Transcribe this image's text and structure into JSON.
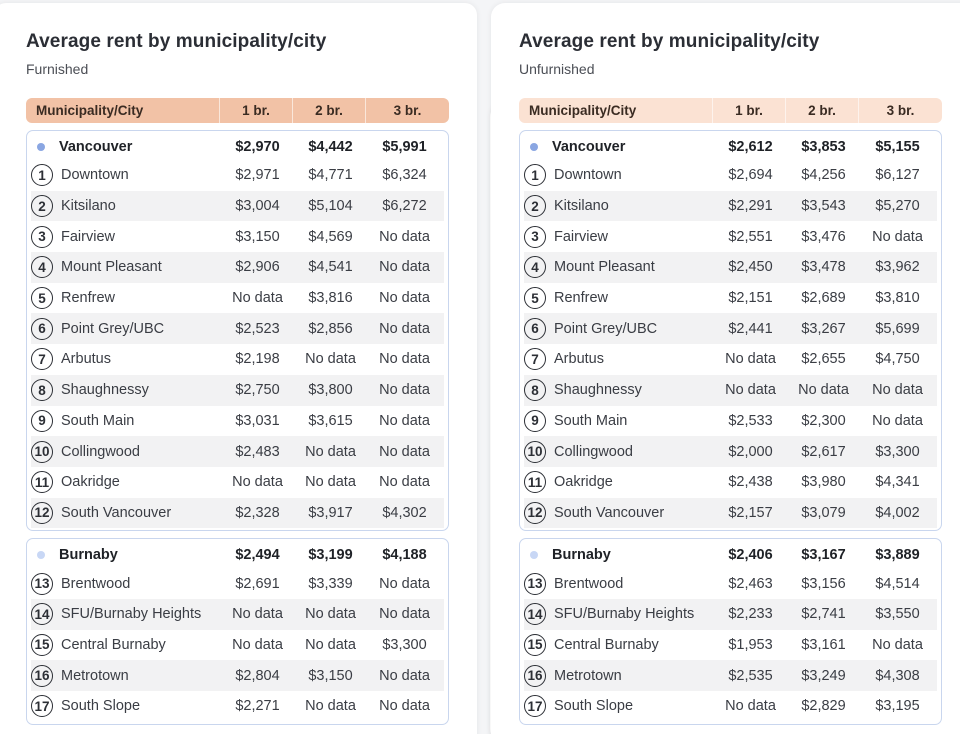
{
  "colors": {
    "header_furnished": "#f2c2a6",
    "header_unfurnished": "#fbe2d3",
    "dot_vancouver": "#8aa6e2",
    "dot_burnaby": "#c8d7f5"
  },
  "columns": [
    "Municipality/City",
    "1 br.",
    "2 br.",
    "3 br."
  ],
  "panels": [
    {
      "title": "Average rent by municipality/city",
      "subtitle": "Furnished",
      "groups": [
        {
          "name": "Vancouver",
          "values": [
            "$2,970",
            "$4,442",
            "$5,991"
          ],
          "rows": [
            {
              "n": "1",
              "name": "Downtown",
              "values": [
                "$2,971",
                "$4,771",
                "$6,324"
              ]
            },
            {
              "n": "2",
              "name": "Kitsilano",
              "values": [
                "$3,004",
                "$5,104",
                "$6,272"
              ]
            },
            {
              "n": "3",
              "name": "Fairview",
              "values": [
                "$3,150",
                "$4,569",
                "No data"
              ]
            },
            {
              "n": "4",
              "name": "Mount Pleasant",
              "values": [
                "$2,906",
                "$4,541",
                "No data"
              ]
            },
            {
              "n": "5",
              "name": "Renfrew",
              "values": [
                "No data",
                "$3,816",
                "No data"
              ]
            },
            {
              "n": "6",
              "name": "Point Grey/UBC",
              "values": [
                "$2,523",
                "$2,856",
                "No data"
              ]
            },
            {
              "n": "7",
              "name": "Arbutus",
              "values": [
                "$2,198",
                "No data",
                "No data"
              ]
            },
            {
              "n": "8",
              "name": "Shaughnessy",
              "values": [
                "$2,750",
                "$3,800",
                "No data"
              ]
            },
            {
              "n": "9",
              "name": "South Main",
              "values": [
                "$3,031",
                "$3,615",
                "No data"
              ]
            },
            {
              "n": "10",
              "name": "Collingwood",
              "values": [
                "$2,483",
                "No data",
                "No data"
              ]
            },
            {
              "n": "11",
              "name": "Oakridge",
              "values": [
                "No data",
                "No data",
                "No data"
              ]
            },
            {
              "n": "12",
              "name": "South Vancouver",
              "values": [
                "$2,328",
                "$3,917",
                "$4,302"
              ]
            }
          ]
        },
        {
          "name": "Burnaby",
          "values": [
            "$2,494",
            "$3,199",
            "$4,188"
          ],
          "rows": [
            {
              "n": "13",
              "name": "Brentwood",
              "values": [
                "$2,691",
                "$3,339",
                "No data"
              ]
            },
            {
              "n": "14",
              "name": "SFU/Burnaby Heights",
              "values": [
                "No data",
                "No data",
                "No data"
              ]
            },
            {
              "n": "15",
              "name": "Central Burnaby",
              "values": [
                "No data",
                "No data",
                "$3,300"
              ]
            },
            {
              "n": "16",
              "name": "Metrotown",
              "values": [
                "$2,804",
                "$3,150",
                "No data"
              ]
            },
            {
              "n": "17",
              "name": "South Slope",
              "values": [
                "$2,271",
                "No data",
                "No data"
              ]
            }
          ]
        }
      ]
    },
    {
      "title": "Average rent by municipality/city",
      "subtitle": "Unfurnished",
      "groups": [
        {
          "name": "Vancouver",
          "values": [
            "$2,612",
            "$3,853",
            "$5,155"
          ],
          "rows": [
            {
              "n": "1",
              "name": "Downtown",
              "values": [
                "$2,694",
                "$4,256",
                "$6,127"
              ]
            },
            {
              "n": "2",
              "name": "Kitsilano",
              "values": [
                "$2,291",
                "$3,543",
                "$5,270"
              ]
            },
            {
              "n": "3",
              "name": "Fairview",
              "values": [
                "$2,551",
                "$3,476",
                "No data"
              ]
            },
            {
              "n": "4",
              "name": "Mount Pleasant",
              "values": [
                "$2,450",
                "$3,478",
                "$3,962"
              ]
            },
            {
              "n": "5",
              "name": "Renfrew",
              "values": [
                "$2,151",
                "$2,689",
                "$3,810"
              ]
            },
            {
              "n": "6",
              "name": "Point Grey/UBC",
              "values": [
                "$2,441",
                "$3,267",
                "$5,699"
              ]
            },
            {
              "n": "7",
              "name": "Arbutus",
              "values": [
                "No data",
                "$2,655",
                "$4,750"
              ]
            },
            {
              "n": "8",
              "name": "Shaughnessy",
              "values": [
                "No data",
                "No data",
                "No data"
              ]
            },
            {
              "n": "9",
              "name": "South Main",
              "values": [
                "$2,533",
                "$2,300",
                "No data"
              ]
            },
            {
              "n": "10",
              "name": "Collingwood",
              "values": [
                "$2,000",
                "$2,617",
                "$3,300"
              ]
            },
            {
              "n": "11",
              "name": "Oakridge",
              "values": [
                "$2,438",
                "$3,980",
                "$4,341"
              ]
            },
            {
              "n": "12",
              "name": "South Vancouver",
              "values": [
                "$2,157",
                "$3,079",
                "$4,002"
              ]
            }
          ]
        },
        {
          "name": "Burnaby",
          "values": [
            "$2,406",
            "$3,167",
            "$3,889"
          ],
          "rows": [
            {
              "n": "13",
              "name": "Brentwood",
              "values": [
                "$2,463",
                "$3,156",
                "$4,514"
              ]
            },
            {
              "n": "14",
              "name": "SFU/Burnaby Heights",
              "values": [
                "$2,233",
                "$2,741",
                "$3,550"
              ]
            },
            {
              "n": "15",
              "name": "Central Burnaby",
              "values": [
                "$1,953",
                "$3,161",
                "No data"
              ]
            },
            {
              "n": "16",
              "name": "Metrotown",
              "values": [
                "$2,535",
                "$3,249",
                "$4,308"
              ]
            },
            {
              "n": "17",
              "name": "South Slope",
              "values": [
                "No data",
                "$2,829",
                "$3,195"
              ]
            }
          ]
        }
      ]
    }
  ]
}
